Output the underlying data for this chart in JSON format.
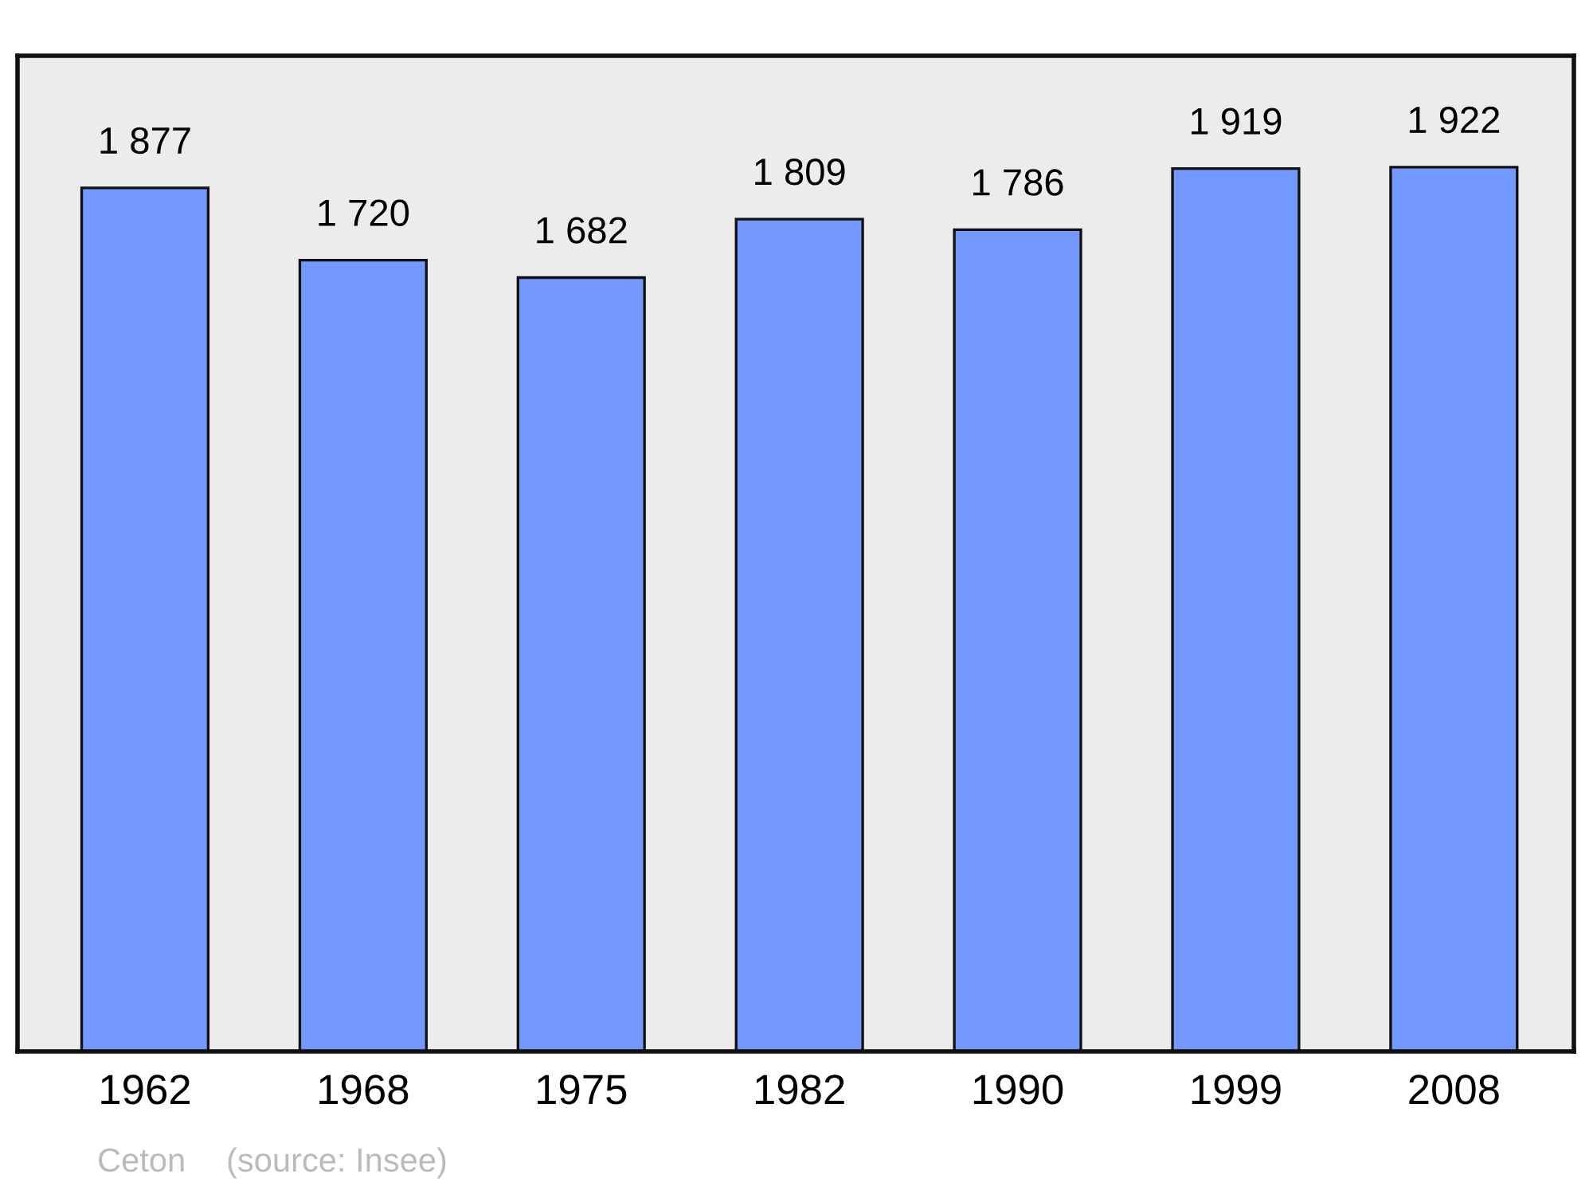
{
  "chart_data": {
    "type": "bar",
    "categories": [
      "1962",
      "1968",
      "1975",
      "1982",
      "1990",
      "1999",
      "2008"
    ],
    "values": [
      1877,
      1720,
      1682,
      1809,
      1786,
      1919,
      1922
    ],
    "value_labels": [
      "1 877",
      "1 720",
      "1 682",
      "1 809",
      "1 786",
      "1 919",
      "1 922"
    ],
    "color": "#7399ff",
    "annotations": [
      "Ceton",
      "(source: Insee)"
    ],
    "grid": false,
    "legend": false
  }
}
